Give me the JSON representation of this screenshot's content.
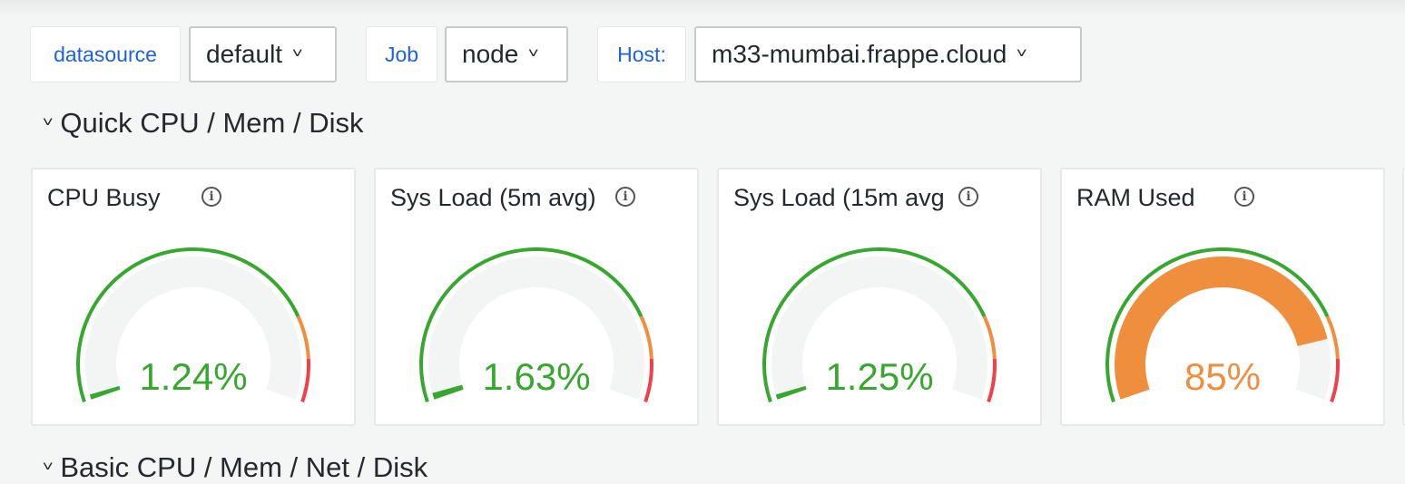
{
  "variables": [
    {
      "label": "datasource",
      "value": "default"
    },
    {
      "label": "Job",
      "value": "node"
    },
    {
      "label": "Host:",
      "value": "m33-mumbai.frappe.cloud"
    }
  ],
  "rows": [
    {
      "title": "Quick CPU / Mem / Disk",
      "collapsed": false
    },
    {
      "title": "Basic CPU / Mem / Net / Disk",
      "collapsed": false
    }
  ],
  "colors": {
    "green": "#37a72f",
    "orange": "#ef8f3d",
    "red": "#f0404a",
    "track": "#f3f4f4",
    "link": "#1f62e0"
  },
  "panels": [
    {
      "title": "CPU Busy",
      "value_text": "1.24%",
      "value": 1.24,
      "min": 0,
      "max": 100,
      "thresholds": [
        80,
        90
      ],
      "value_color": "#37a72f"
    },
    {
      "title": "Sys Load (5m avg)",
      "value_text": "1.63%",
      "value": 1.63,
      "min": 0,
      "max": 100,
      "thresholds": [
        80,
        90
      ],
      "value_color": "#37a72f"
    },
    {
      "title": "Sys Load (15m avg)",
      "value_text": "1.25%",
      "value": 1.25,
      "min": 0,
      "max": 100,
      "thresholds": [
        80,
        90
      ],
      "value_color": "#37a72f"
    },
    {
      "title": "RAM Used",
      "value_text": "85%",
      "value": 85,
      "min": 0,
      "max": 100,
      "thresholds": [
        80,
        90
      ],
      "value_color": "#ef8f3d"
    }
  ]
}
